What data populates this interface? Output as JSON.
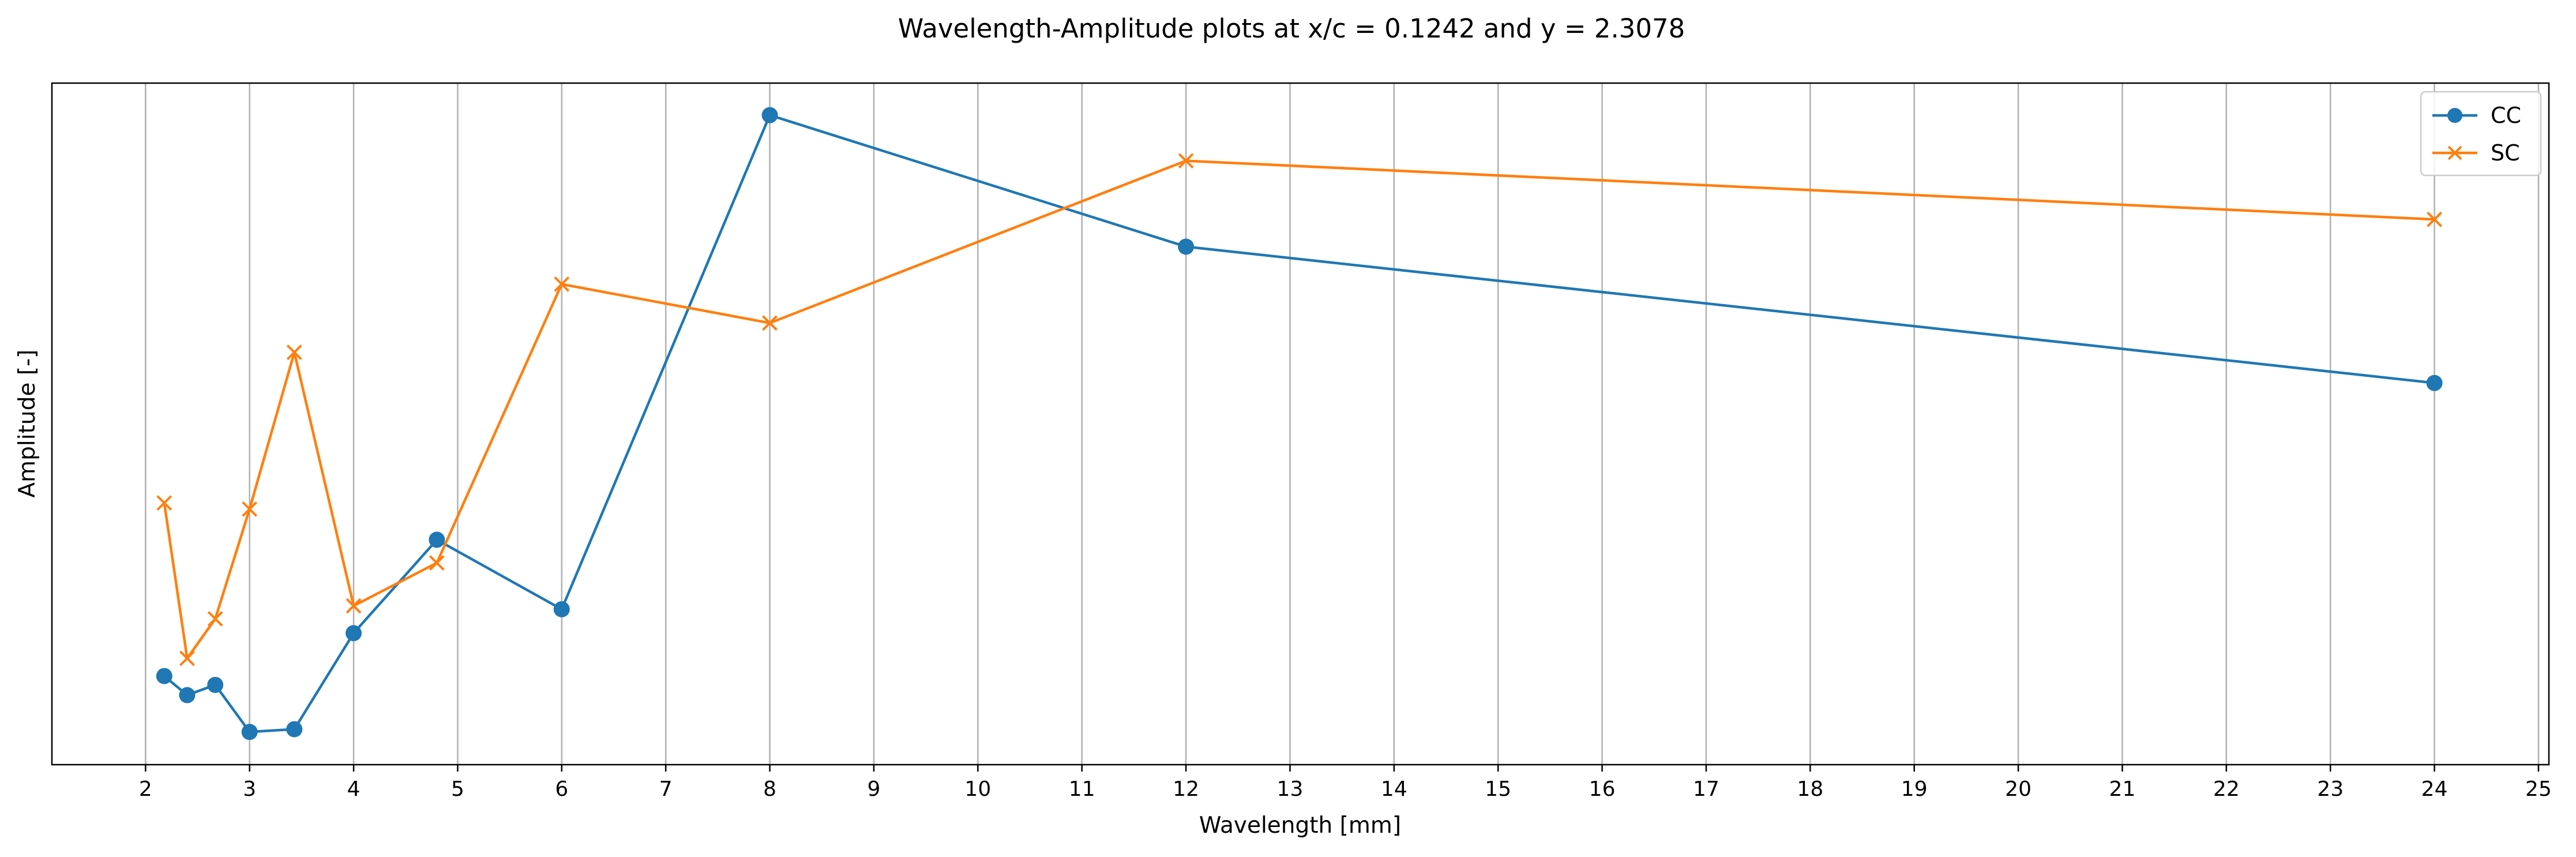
{
  "chart_data": {
    "type": "line",
    "title": "Wavelength-Amplitude plots at x/c = 0.1242 and y = 2.3078",
    "xlabel": "Wavelength [mm]",
    "ylabel": "Amplitude [-]",
    "xlim": [
      1.1,
      25.1
    ],
    "ylim": [
      0,
      1
    ],
    "xticks": [
      2,
      3,
      4,
      5,
      6,
      7,
      8,
      9,
      10,
      11,
      12,
      13,
      14,
      15,
      16,
      17,
      18,
      19,
      20,
      21,
      22,
      23,
      24,
      25
    ],
    "grid": "vertical",
    "legend": "top-right",
    "series": [
      {
        "name": "CC",
        "color": "#1f77b4",
        "marker": "circle",
        "x": [
          2.18,
          2.4,
          2.67,
          3.0,
          3.43,
          4.0,
          4.8,
          6.0,
          8.0,
          12.0,
          24.0
        ],
        "y": [
          0.13,
          0.102,
          0.117,
          0.048,
          0.052,
          0.193,
          0.33,
          0.228,
          0.953,
          0.76,
          0.56
        ]
      },
      {
        "name": "SC",
        "color": "#ff7f0e",
        "marker": "x",
        "x": [
          2.18,
          2.4,
          2.67,
          3.0,
          3.43,
          4.0,
          4.8,
          6.0,
          8.0,
          12.0,
          24.0
        ],
        "y": [
          0.384,
          0.156,
          0.214,
          0.375,
          0.605,
          0.233,
          0.296,
          0.705,
          0.648,
          0.886,
          0.8
        ]
      }
    ]
  }
}
